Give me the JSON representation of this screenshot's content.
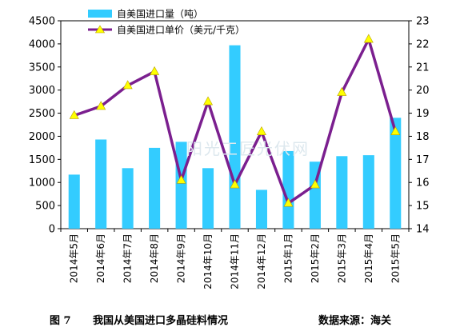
{
  "chart_data": {
    "type": "bar",
    "categories": [
      "2014年5月",
      "2014年6月",
      "2014年7月",
      "2014年8月",
      "2014年9月",
      "2014年10月",
      "2014年11月",
      "2014年12月",
      "2015年1月",
      "2015年2月",
      "2015年3月",
      "2015年4月",
      "2015年5月"
    ],
    "series": [
      {
        "name": "自美国进口量（吨）",
        "type": "bar",
        "axis": "left",
        "color": "#33CCFF",
        "values": [
          1170,
          1930,
          1310,
          1750,
          1880,
          1310,
          3970,
          840,
          1680,
          1450,
          1570,
          1590,
          2400
        ]
      },
      {
        "name": "自美国进口单价（美元/千克）",
        "type": "line",
        "axis": "right",
        "color": "#7B1F8F",
        "marker_color": "#FFFF00",
        "values": [
          18.9,
          19.3,
          20.2,
          20.8,
          16.1,
          19.5,
          15.9,
          18.2,
          15.1,
          15.9,
          19.9,
          22.2,
          18.2
        ]
      }
    ],
    "y_left": {
      "ylim": [
        0,
        4500
      ],
      "ticks": [
        "0",
        "500",
        "1000",
        "1500",
        "2000",
        "2500",
        "3000",
        "3500",
        "4000",
        "4500"
      ]
    },
    "y_right": {
      "ylim": [
        14,
        23
      ],
      "ticks": [
        "14",
        "15",
        "16",
        "17",
        "18",
        "19",
        "20",
        "21",
        "22",
        "23"
      ]
    },
    "legend_position": "top-left",
    "grid": false
  },
  "legend": {
    "bar_label": "自美国进口量（吨）",
    "line_label": "自美国进口单价（美元/千克）"
  },
  "watermark": "阳光工匠光伏网",
  "caption": {
    "figure": "图 7",
    "title": "我国从美国进口多晶硅料情况",
    "source": "数据来源：海关"
  }
}
